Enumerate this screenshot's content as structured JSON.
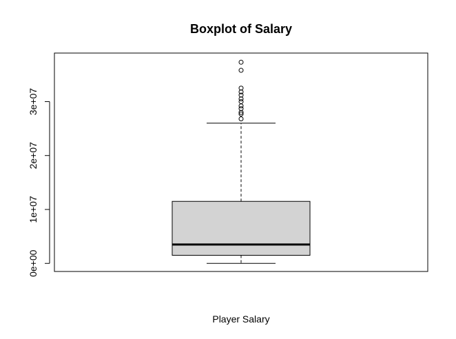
{
  "chart_data": {
    "type": "boxplot",
    "title": "Boxplot of Salary",
    "xlabel": "Player Salary",
    "ylabel": "",
    "yticks": [
      {
        "value": 0,
        "label": "0e+00"
      },
      {
        "value": 10000000,
        "label": "1e+07"
      },
      {
        "value": 20000000,
        "label": "2e+07"
      },
      {
        "value": 30000000,
        "label": "3e+07"
      }
    ],
    "ylim": [
      -1500000,
      39000000
    ],
    "box": {
      "min": 0,
      "q1": 1500000,
      "median": 3500000,
      "q3": 11500000,
      "max": 26000000,
      "outliers": [
        26800000,
        27700000,
        28000000,
        28700000,
        29200000,
        30000000,
        30500000,
        31200000,
        31800000,
        32500000,
        35800000,
        37300000
      ]
    },
    "colors": {
      "box_fill": "#d3d3d3",
      "stroke": "#000000"
    },
    "grid": false
  }
}
